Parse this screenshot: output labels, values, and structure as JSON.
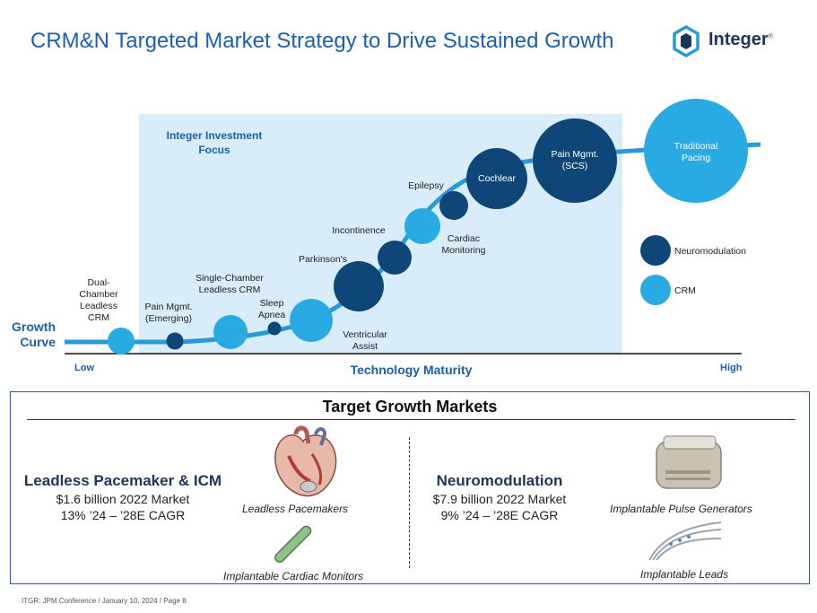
{
  "header": {
    "title": "CRM&N Targeted Market Strategy to Drive Sustained Growth",
    "logo_text": "Integer",
    "logo_mark": "®"
  },
  "diagram": {
    "focus_label": "Integer Investment Focus",
    "growth_label": "Growth Curve",
    "x_axis": {
      "title": "Technology Maturity",
      "low": "Low",
      "high": "High"
    },
    "nodes": [
      {
        "label": "Dual-Chamber Leadless CRM",
        "category": "CRM"
      },
      {
        "label": "Pain Mgmt. (Emerging)",
        "category": "Neuromodulation"
      },
      {
        "label": "Single-Chamber Leadless CRM",
        "category": "CRM"
      },
      {
        "label": "Sleep Apnea",
        "category": "Neuromodulation"
      },
      {
        "label": "Ventricular Assist",
        "category": "CRM"
      },
      {
        "label": "Parkinson's",
        "category": "Neuromodulation"
      },
      {
        "label": "Incontinence",
        "category": "Neuromodulation"
      },
      {
        "label": "Cardiac Monitoring",
        "category": "CRM"
      },
      {
        "label": "Epilepsy",
        "category": "Neuromodulation"
      },
      {
        "label": "Cochlear",
        "category": "Neuromodulation"
      },
      {
        "label": "Pain Mgmt. (SCS)",
        "category": "Neuromodulation"
      },
      {
        "label": "Traditional Pacing",
        "category": "CRM"
      }
    ],
    "legend": [
      {
        "label": "Neuromodulation",
        "color": "#0d4677"
      },
      {
        "label": "CRM",
        "color": "#29aae2"
      }
    ],
    "colors": {
      "curve": "#2a9ad6",
      "focus_bg": "#d8ecfa",
      "accent": "#1b5fae"
    }
  },
  "target": {
    "title": "Target Growth Markets",
    "left": {
      "heading": "Leadless Pacemaker & ICM",
      "line1": "$1.6 billion 2022 Market",
      "line2": "13% ’24 – ’28E CAGR",
      "product1": "Leadless Pacemakers",
      "product2": "Implantable Cardiac Monitors"
    },
    "right": {
      "heading": "Neuromodulation",
      "line1": "$7.9 billion 2022 Market",
      "line2": "9% ’24 – ’28E CAGR",
      "product1": "Implantable Pulse Generators",
      "product2": "Implantable Leads"
    }
  },
  "footer": "ITGR: JPM Conference / January 10, 2024 / Page 8"
}
